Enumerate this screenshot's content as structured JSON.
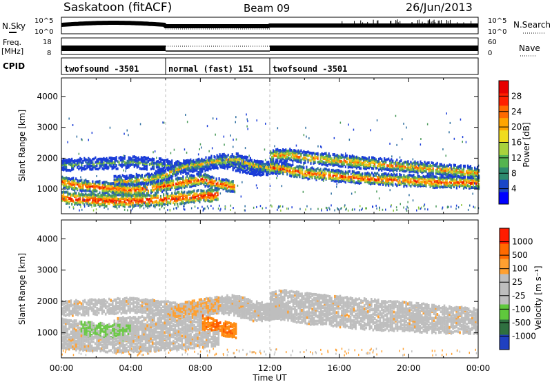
{
  "header": {
    "title": "Saskatoon (fitACF)",
    "beam": "Beam 09",
    "date": "26/Jun/2013"
  },
  "left_labels": {
    "nsky": "N.Sky",
    "freq": "Freq.",
    "freq_unit": "[MHz]",
    "cpid": "CPID"
  },
  "right_labels": {
    "nsearch": "N.Search",
    "nave": "Nave"
  },
  "noise_panel": {
    "top_tick": "10^5",
    "bottom_tick": "10^0"
  },
  "freq_panel": {
    "left_ticks": [
      "18",
      "8"
    ],
    "right_ticks": [
      "60",
      "0"
    ]
  },
  "cpid_segments": [
    {
      "label": "twofsound -3501",
      "start_h": 0,
      "end_h": 6
    },
    {
      "label": "normal (fast) 151",
      "start_h": 6,
      "end_h": 12
    },
    {
      "label": "twofsound -3501",
      "start_h": 12,
      "end_h": 24
    }
  ],
  "colorbars": {
    "power": {
      "label": "Power [dB]",
      "ticks": [
        "28",
        "24",
        "20",
        "16",
        "12",
        "8",
        "4"
      ],
      "colors": [
        "#0000ff",
        "#1a46c8",
        "#2d8a6e",
        "#55b450",
        "#a8d23c",
        "#f0dc1e",
        "#ffa500",
        "#ff6a00",
        "#ff2000",
        "#e60000"
      ]
    },
    "velocity": {
      "label": "Velocity [m s⁻¹]",
      "ticks": [
        "1000",
        "500",
        "100",
        "25",
        "-25",
        "-100",
        "-500",
        "-1000"
      ],
      "colors": [
        "#2040c0",
        "#2f7040",
        "#5fc83c",
        "#bebebe",
        "#bebebe",
        "#ffa030",
        "#ff6a00",
        "#ff1c00"
      ]
    }
  },
  "chart_data": [
    {
      "type": "heatmap",
      "name": "power",
      "ylabel": "Slant Range [km]",
      "yticks": [
        1000,
        2000,
        3000,
        4000
      ],
      "ylim": [
        200,
        4600
      ],
      "xlim": [
        0,
        24
      ],
      "bands": [
        {
          "x": [
            0,
            2,
            4,
            6,
            7,
            8,
            9,
            10,
            11,
            12
          ],
          "y": [
            1750,
            1800,
            1850,
            1750,
            1650,
            1700,
            1850,
            1750,
            1600,
            1600
          ]
        },
        {
          "x": [
            3,
            5,
            6,
            7,
            8,
            9,
            10,
            11,
            12,
            13
          ],
          "y": [
            1200,
            1300,
            1450,
            1700,
            1800,
            1900,
            1950,
            1750,
            1650,
            1700
          ]
        },
        {
          "x": [
            0,
            1,
            2,
            3,
            4,
            5,
            6,
            7,
            8,
            9,
            10
          ],
          "y": [
            1200,
            1100,
            1050,
            1000,
            950,
            1000,
            1100,
            1200,
            1300,
            1150,
            1050
          ]
        },
        {
          "x": [
            0,
            1,
            2,
            3,
            4,
            5,
            6,
            7,
            8,
            9
          ],
          "y": [
            700,
            650,
            620,
            600,
            600,
            620,
            650,
            700,
            750,
            800
          ]
        },
        {
          "x": [
            12,
            13,
            14,
            15,
            16,
            17,
            18,
            19,
            20,
            21,
            22,
            23,
            24
          ],
          "y": [
            1700,
            1600,
            1500,
            1450,
            1400,
            1350,
            1300,
            1280,
            1250,
            1230,
            1200,
            1200,
            1180
          ]
        },
        {
          "x": [
            12,
            13,
            14,
            15,
            16,
            17,
            18,
            19,
            20,
            21,
            22,
            23,
            24
          ],
          "y": [
            2050,
            2100,
            2000,
            1950,
            1900,
            1850,
            1800,
            1750,
            1700,
            1650,
            1600,
            1550,
            1500
          ]
        }
      ]
    },
    {
      "type": "heatmap",
      "name": "velocity",
      "ylabel": "Slant Range [km]",
      "xlabel": "Time UT",
      "yticks": [
        1000,
        2000,
        3000,
        4000
      ],
      "ylim": [
        200,
        4600
      ],
      "xlim": [
        0,
        24
      ],
      "xticks": [
        "00:00",
        "04:00",
        "08:00",
        "12:00",
        "16:00",
        "20:00",
        "00:00"
      ]
    }
  ]
}
